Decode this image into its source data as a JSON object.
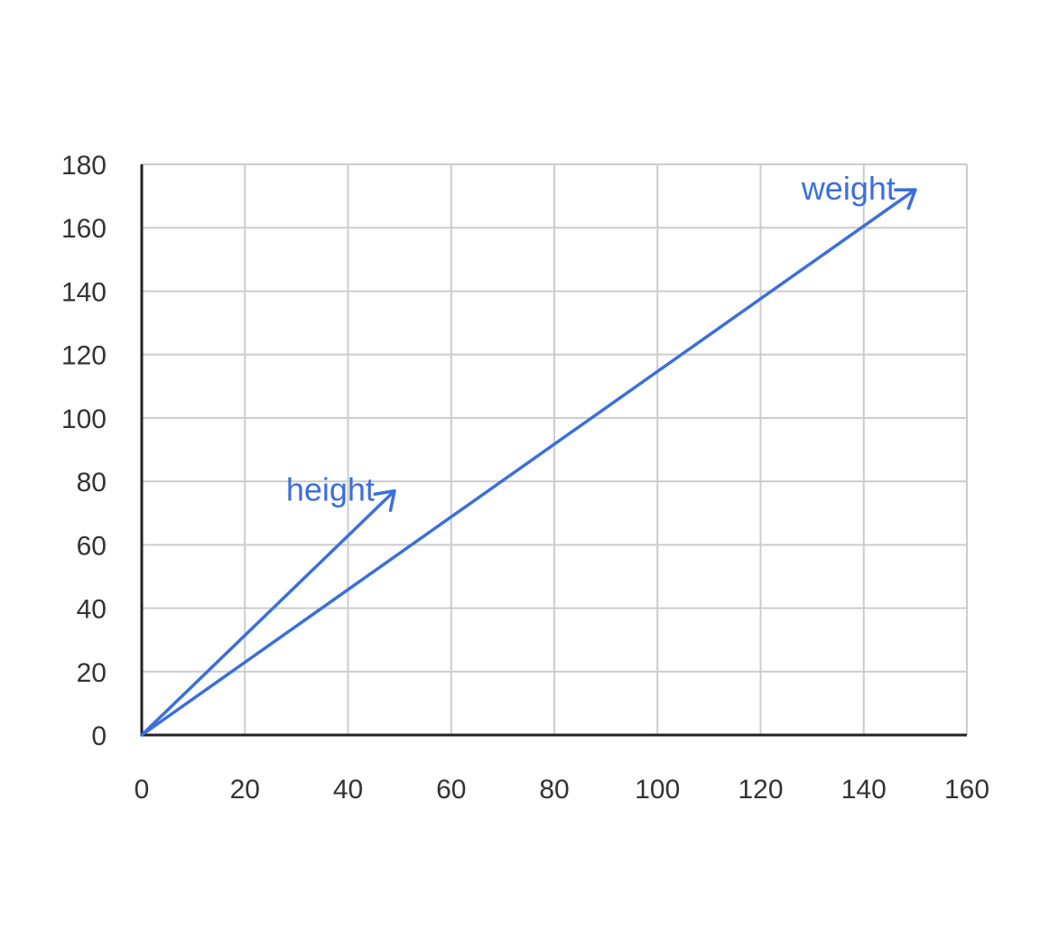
{
  "chart_data": {
    "type": "vector",
    "title": "",
    "xlabel": "",
    "ylabel": "",
    "xlim": [
      0,
      160
    ],
    "ylim": [
      0,
      180
    ],
    "x_ticks": [
      0,
      20,
      40,
      60,
      80,
      100,
      120,
      140,
      160
    ],
    "y_ticks": [
      0,
      20,
      40,
      60,
      80,
      100,
      120,
      140,
      160,
      180
    ],
    "grid": true,
    "series": [
      {
        "name": "height",
        "origin": [
          0,
          0
        ],
        "tip": [
          49,
          77
        ]
      },
      {
        "name": "weight",
        "origin": [
          0,
          0
        ],
        "tip": [
          150,
          172
        ]
      }
    ],
    "colors": {
      "series": "#3b6fdb",
      "grid": "#cccccc",
      "axis": "#222222",
      "tick_text": "#333333"
    }
  }
}
